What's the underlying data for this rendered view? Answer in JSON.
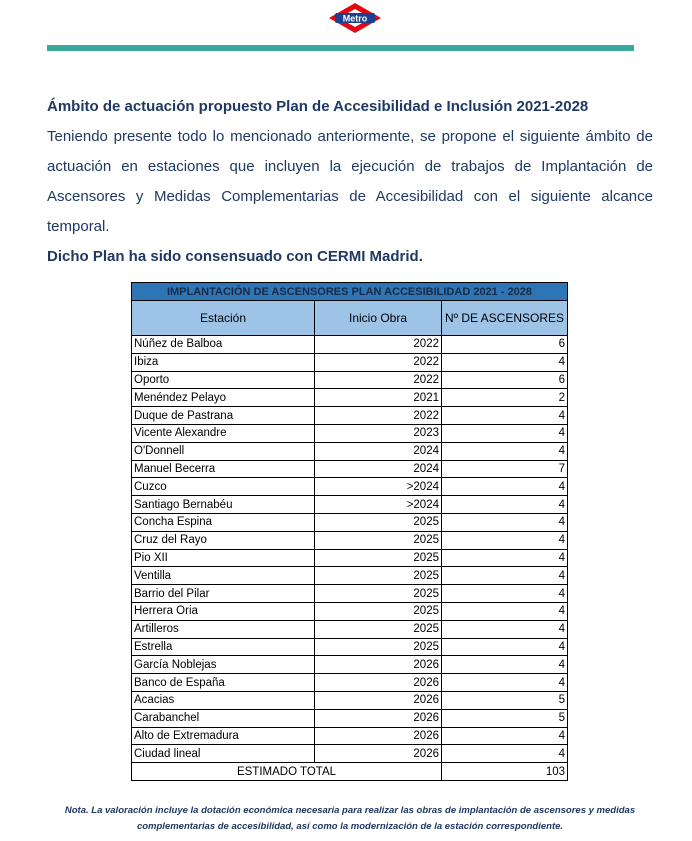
{
  "logo": {
    "text": "Metro",
    "colors": {
      "diamond": "#e30613",
      "band": "#1d3f8f"
    }
  },
  "accent_color": "#3aa89b",
  "heading": "Ámbito de actuación propuesto Plan de Accesibilidad e Inclusión 2021-2028",
  "paragraph": "Teniendo presente todo lo mencionado anteriormente, se propone el siguiente ámbito de actuación en estaciones que incluyen la ejecución de trabajos de Implantación de Ascensores y Medidas Complementarias de Accesibilidad con el siguiente alcance temporal.",
  "paragraph_bold": "Dicho Plan ha sido consensuado con CERMI Madrid.",
  "table": {
    "title": "IMPLANTACIÓN DE ASCENSORES PLAN ACCESIBILIDAD 2021 - 2028",
    "headers": [
      "Estación",
      "Inicio Obra",
      "Nº DE ASCENSORES"
    ],
    "rows": [
      [
        "Núñez de Balboa",
        "2022",
        "6"
      ],
      [
        "Ibiza",
        "2022",
        "4"
      ],
      [
        "Oporto",
        "2022",
        "6"
      ],
      [
        "Menéndez Pelayo",
        "2021",
        "2"
      ],
      [
        "Duque de Pastrana",
        "2022",
        "4"
      ],
      [
        "Vicente Alexandre",
        "2023",
        "4"
      ],
      [
        "O'Donnell",
        "2024",
        "4"
      ],
      [
        "Manuel Becerra",
        "2024",
        "7"
      ],
      [
        "Cuzco",
        ">2024",
        "4"
      ],
      [
        "Santiago Bernabéu",
        ">2024",
        "4"
      ],
      [
        "Concha Espina",
        "2025",
        "4"
      ],
      [
        "Cruz del Rayo",
        "2025",
        "4"
      ],
      [
        "Pio XII",
        "2025",
        "4"
      ],
      [
        "Ventilla",
        "2025",
        "4"
      ],
      [
        "Barrio del Pilar",
        "2025",
        "4"
      ],
      [
        "Herrera Oria",
        "2025",
        "4"
      ],
      [
        "Artilleros",
        "2025",
        "4"
      ],
      [
        "Estrella",
        "2025",
        "4"
      ],
      [
        "García Noblejas",
        "2026",
        "4"
      ],
      [
        "Banco de España",
        "2026",
        "4"
      ],
      [
        "Acacias",
        "2026",
        "5"
      ],
      [
        "Carabanchel",
        "2026",
        "5"
      ],
      [
        "Alto de Extremadura",
        "2026",
        "4"
      ],
      [
        "Ciudad lineal",
        "2026",
        "4"
      ]
    ],
    "total_label": "ESTIMADO TOTAL",
    "total_value": "103"
  },
  "note": "Nota. La valoración incluye la dotación económica necesaria para realizar las obras de implantación de ascensores y medidas complementarias de accesibilidad, así como la modernización de la estación correspondiente."
}
